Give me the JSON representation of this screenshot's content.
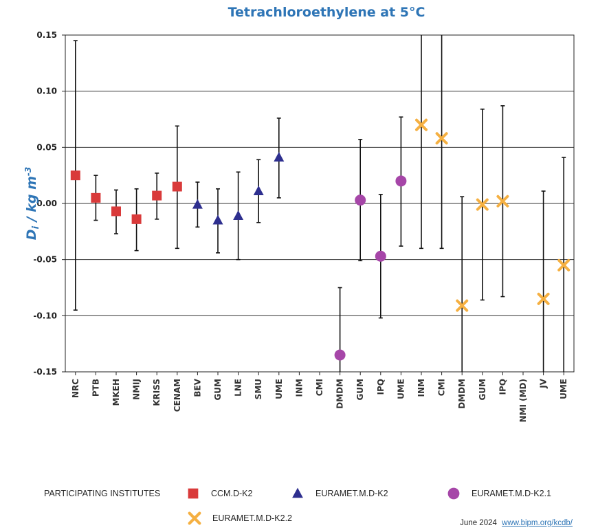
{
  "chart_data": {
    "type": "scatter",
    "title": "Tetrachloroethylene at 5°C",
    "ylabel_main": "D",
    "ylabel_sub": "i",
    "ylabel_rest": " / kg m",
    "ylabel_sup": "-3",
    "ylim": [
      -0.15,
      0.15
    ],
    "yticks": [
      "0.15",
      "0.10",
      "0.05",
      "0.00",
      "-0.05",
      "-0.10",
      "-0.15"
    ],
    "grid": true,
    "categories": [
      "NRC",
      "PTB",
      "MKEH",
      "NMIJ",
      "KRISS",
      "CENAM",
      "BEV",
      "GUM",
      "LNE",
      "SMU",
      "UME",
      "INM",
      "CMI",
      "DMDM",
      "GUM",
      "IPQ",
      "UME",
      "INM",
      "CMI",
      "DMDM",
      "GUM",
      "IPQ",
      "NMI (MD)",
      "JV",
      "UME"
    ],
    "series": [
      {
        "name": "CCM.D-K2",
        "marker": "square",
        "color": "#d93a3a",
        "points": [
          {
            "x": 0,
            "y": 0.025,
            "lo": -0.095,
            "hi": 0.145
          },
          {
            "x": 1,
            "y": 0.005,
            "lo": -0.015,
            "hi": 0.025
          },
          {
            "x": 2,
            "y": -0.007,
            "lo": -0.027,
            "hi": 0.012
          },
          {
            "x": 3,
            "y": -0.014,
            "lo": -0.042,
            "hi": 0.013
          },
          {
            "x": 4,
            "y": 0.007,
            "lo": -0.014,
            "hi": 0.027
          },
          {
            "x": 5,
            "y": 0.015,
            "lo": -0.04,
            "hi": 0.069
          }
        ]
      },
      {
        "name": "EURAMET.M.D-K2",
        "marker": "triangle",
        "color": "#2e2f8f",
        "points": [
          {
            "x": 6,
            "y": -0.001,
            "lo": -0.021,
            "hi": 0.019
          },
          {
            "x": 7,
            "y": -0.015,
            "lo": -0.044,
            "hi": 0.013
          },
          {
            "x": 8,
            "y": -0.011,
            "lo": -0.05,
            "hi": 0.028
          },
          {
            "x": 9,
            "y": 0.011,
            "lo": -0.017,
            "hi": 0.039
          },
          {
            "x": 10,
            "y": 0.041,
            "lo": 0.005,
            "hi": 0.076
          }
        ]
      },
      {
        "name": "EURAMET.M.D-K2.1",
        "marker": "circle",
        "color": "#a646a8",
        "points": [
          {
            "x": 13,
            "y": -0.135,
            "lo": -0.15,
            "hi": -0.075
          },
          {
            "x": 14,
            "y": 0.003,
            "lo": -0.051,
            "hi": 0.057
          },
          {
            "x": 15,
            "y": -0.047,
            "lo": -0.102,
            "hi": 0.008
          },
          {
            "x": 16,
            "y": 0.02,
            "lo": -0.038,
            "hi": 0.077
          }
        ]
      },
      {
        "name": "EURAMET.M.D-K2.2",
        "marker": "cross",
        "color": "#f5b042",
        "points": [
          {
            "x": 17,
            "y": 0.07,
            "lo": -0.04,
            "hi": 0.15
          },
          {
            "x": 18,
            "y": 0.058,
            "lo": -0.04,
            "hi": 0.15
          },
          {
            "x": 19,
            "y": -0.091,
            "lo": -0.15,
            "hi": 0.006
          },
          {
            "x": 20,
            "y": -0.001,
            "lo": -0.086,
            "hi": 0.084
          },
          {
            "x": 21,
            "y": 0.002,
            "lo": -0.083,
            "hi": 0.087
          },
          {
            "x": 23,
            "y": -0.085,
            "lo": -0.15,
            "hi": 0.011
          },
          {
            "x": 24,
            "y": -0.055,
            "lo": -0.15,
            "hi": 0.041
          }
        ]
      }
    ],
    "legend_title": "PARTICIPATING INSTITUTES",
    "legend_placement": "bottom"
  },
  "footer": {
    "date": "June 2024",
    "link": "www.bipm.org/kcdb/"
  }
}
